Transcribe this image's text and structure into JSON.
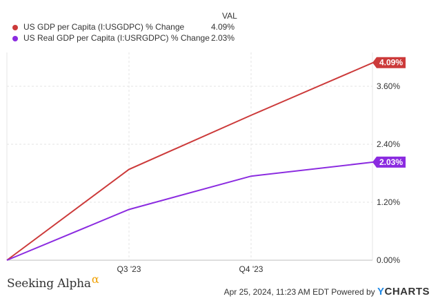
{
  "legend": {
    "header": "VAL",
    "items": [
      {
        "name": "US GDP per Capita (I:USGDPC) % Change",
        "value": "4.09%",
        "color": "#cc3a3a"
      },
      {
        "name": "US Real GDP per Capita (I:USRGDPC) % Change",
        "value": "2.03%",
        "color": "#8b2be0"
      }
    ]
  },
  "chart_data": {
    "type": "line",
    "x_ticks": [
      "Q3 '23",
      "Q4 '23"
    ],
    "y_ticks": [
      "0.00%",
      "1.20%",
      "2.40%",
      "3.60%"
    ],
    "y_tick_values": [
      0,
      1.2,
      2.4,
      3.6
    ],
    "ylim": [
      0,
      4.3
    ],
    "grid": true,
    "series": [
      {
        "name": "US GDP per Capita (I:USGDPC) % Change",
        "color": "#cc3a3a",
        "x": [
          0,
          1,
          2,
          3
        ],
        "values": [
          0,
          1.88,
          3.0,
          4.09
        ],
        "end_label": "4.09%"
      },
      {
        "name": "US Real GDP per Capita (I:USRGDPC) % Change",
        "color": "#8b2be0",
        "x": [
          0,
          1,
          2,
          3
        ],
        "values": [
          0,
          1.05,
          1.74,
          2.03
        ],
        "end_label": "2.03%"
      }
    ]
  },
  "footer": {
    "brand": "Seeking Alpha",
    "brand_symbol": "α",
    "timestamp": "Apr 25, 2024, 11:23 AM EDT Powered by",
    "provider_y": "Y",
    "provider_rest": "CHARTS"
  }
}
